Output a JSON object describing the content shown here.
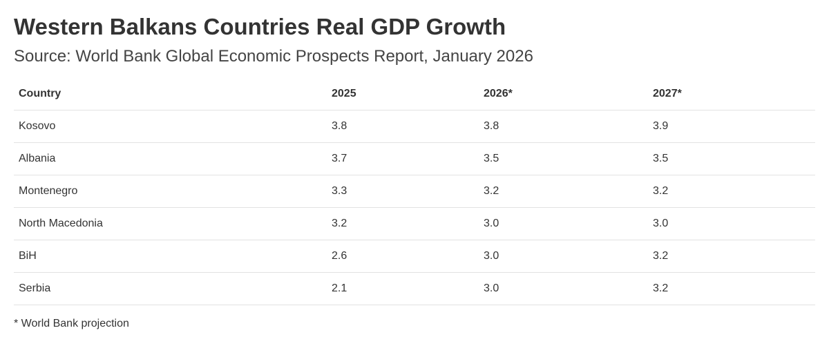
{
  "header": {
    "title": "Western Balkans Countries Real GDP Growth",
    "subtitle": "Source: World Bank Global Economic Prospects Report, January 2026"
  },
  "table": {
    "columns": [
      "Country",
      "2025",
      "2026*",
      "2027*"
    ],
    "rows": [
      [
        "Kosovo",
        "3.8",
        "3.8",
        "3.9"
      ],
      [
        "Albania",
        "3.7",
        "3.5",
        "3.5"
      ],
      [
        "Montenegro",
        "3.3",
        "3.2",
        "3.2"
      ],
      [
        "North Macedonia",
        "3.2",
        "3.0",
        "3.0"
      ],
      [
        "BiH",
        "2.6",
        "3.0",
        "3.2"
      ],
      [
        "Serbia",
        "2.1",
        "3.0",
        "3.2"
      ]
    ]
  },
  "footnote": "* World Bank projection"
}
